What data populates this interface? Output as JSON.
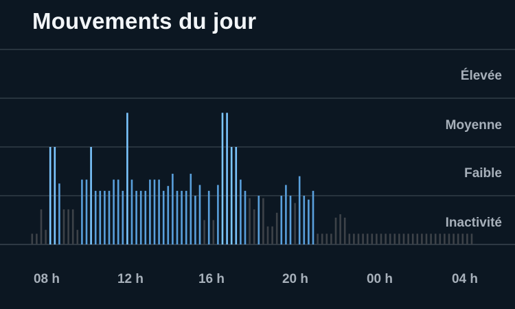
{
  "header": {
    "title": "Mouvements du jour"
  },
  "colors": {
    "background": "#0c1722",
    "gridline": "#3a4550",
    "inactive_bar": "#3d4248",
    "active_bar": "#5aa0dc",
    "peak_bar": "#7cc6ff",
    "label": "#a7b0ba"
  },
  "chart_data": {
    "type": "bar",
    "title": "Mouvements du jour",
    "levels": [
      "Inactivité",
      "Faible",
      "Moyenne",
      "Élevée"
    ],
    "x_ticks": [
      "08 h",
      "12 h",
      "16 h",
      "20 h",
      "00 h",
      "04 h"
    ],
    "ylim": [
      0,
      4
    ],
    "grid": true,
    "bars": [
      {
        "v": 0.22,
        "s": "i"
      },
      {
        "v": 0.22,
        "s": "i"
      },
      {
        "v": 0.72,
        "s": "i"
      },
      {
        "v": 0.3,
        "s": "i"
      },
      {
        "v": 2.0,
        "s": "a"
      },
      {
        "v": 2.0,
        "s": "a"
      },
      {
        "v": 1.25,
        "s": "a"
      },
      {
        "v": 0.72,
        "s": "i"
      },
      {
        "v": 0.72,
        "s": "i"
      },
      {
        "v": 0.72,
        "s": "i"
      },
      {
        "v": 0.3,
        "s": "i"
      },
      {
        "v": 1.33,
        "s": "a"
      },
      {
        "v": 1.33,
        "s": "a"
      },
      {
        "v": 2.0,
        "s": "a"
      },
      {
        "v": 1.1,
        "s": "a"
      },
      {
        "v": 1.1,
        "s": "a"
      },
      {
        "v": 1.1,
        "s": "a"
      },
      {
        "v": 1.1,
        "s": "a"
      },
      {
        "v": 1.33,
        "s": "a"
      },
      {
        "v": 1.33,
        "s": "a"
      },
      {
        "v": 1.1,
        "s": "a"
      },
      {
        "v": 2.7,
        "s": "a"
      },
      {
        "v": 1.33,
        "s": "a"
      },
      {
        "v": 1.1,
        "s": "a"
      },
      {
        "v": 1.1,
        "s": "a"
      },
      {
        "v": 1.1,
        "s": "a"
      },
      {
        "v": 1.33,
        "s": "a"
      },
      {
        "v": 1.33,
        "s": "a"
      },
      {
        "v": 1.33,
        "s": "a"
      },
      {
        "v": 1.1,
        "s": "a"
      },
      {
        "v": 1.2,
        "s": "a"
      },
      {
        "v": 1.45,
        "s": "a"
      },
      {
        "v": 1.1,
        "s": "a"
      },
      {
        "v": 1.1,
        "s": "a"
      },
      {
        "v": 1.1,
        "s": "a"
      },
      {
        "v": 1.45,
        "s": "a"
      },
      {
        "v": 1.0,
        "s": "a"
      },
      {
        "v": 1.22,
        "s": "a"
      },
      {
        "v": 0.5,
        "s": "i"
      },
      {
        "v": 1.1,
        "s": "a"
      },
      {
        "v": 0.5,
        "s": "i"
      },
      {
        "v": 1.22,
        "s": "a"
      },
      {
        "v": 2.7,
        "s": "a"
      },
      {
        "v": 2.7,
        "s": "a"
      },
      {
        "v": 2.0,
        "s": "a"
      },
      {
        "v": 2.0,
        "s": "a"
      },
      {
        "v": 1.33,
        "s": "a"
      },
      {
        "v": 1.1,
        "s": "a"
      },
      {
        "v": 0.95,
        "s": "i"
      },
      {
        "v": 0.72,
        "s": "i"
      },
      {
        "v": 1.0,
        "s": "a"
      },
      {
        "v": 0.95,
        "s": "i"
      },
      {
        "v": 0.37,
        "s": "i"
      },
      {
        "v": 0.37,
        "s": "i"
      },
      {
        "v": 0.65,
        "s": "i"
      },
      {
        "v": 1.0,
        "s": "a"
      },
      {
        "v": 1.22,
        "s": "a"
      },
      {
        "v": 1.0,
        "s": "a"
      },
      {
        "v": 0.85,
        "s": "i"
      },
      {
        "v": 1.4,
        "s": "a"
      },
      {
        "v": 1.0,
        "s": "a"
      },
      {
        "v": 0.92,
        "s": "a"
      },
      {
        "v": 1.1,
        "s": "a"
      },
      {
        "v": 0.22,
        "s": "i"
      },
      {
        "v": 0.22,
        "s": "i"
      },
      {
        "v": 0.22,
        "s": "i"
      },
      {
        "v": 0.22,
        "s": "i"
      },
      {
        "v": 0.55,
        "s": "i"
      },
      {
        "v": 0.62,
        "s": "i"
      },
      {
        "v": 0.55,
        "s": "i"
      },
      {
        "v": 0.22,
        "s": "i"
      },
      {
        "v": 0.22,
        "s": "i"
      },
      {
        "v": 0.22,
        "s": "i"
      },
      {
        "v": 0.22,
        "s": "i"
      },
      {
        "v": 0.22,
        "s": "i"
      },
      {
        "v": 0.22,
        "s": "i"
      },
      {
        "v": 0.22,
        "s": "i"
      },
      {
        "v": 0.22,
        "s": "i"
      },
      {
        "v": 0.22,
        "s": "i"
      },
      {
        "v": 0.22,
        "s": "i"
      },
      {
        "v": 0.22,
        "s": "i"
      },
      {
        "v": 0.22,
        "s": "i"
      },
      {
        "v": 0.22,
        "s": "i"
      },
      {
        "v": 0.22,
        "s": "i"
      },
      {
        "v": 0.22,
        "s": "i"
      },
      {
        "v": 0.22,
        "s": "i"
      },
      {
        "v": 0.22,
        "s": "i"
      },
      {
        "v": 0.22,
        "s": "i"
      },
      {
        "v": 0.22,
        "s": "i"
      },
      {
        "v": 0.22,
        "s": "i"
      },
      {
        "v": 0.22,
        "s": "i"
      },
      {
        "v": 0.22,
        "s": "i"
      },
      {
        "v": 0.22,
        "s": "i"
      },
      {
        "v": 0.22,
        "s": "i"
      },
      {
        "v": 0.22,
        "s": "i"
      },
      {
        "v": 0.22,
        "s": "i"
      },
      {
        "v": 0.22,
        "s": "i"
      },
      {
        "v": 0.22,
        "s": "i"
      }
    ]
  }
}
